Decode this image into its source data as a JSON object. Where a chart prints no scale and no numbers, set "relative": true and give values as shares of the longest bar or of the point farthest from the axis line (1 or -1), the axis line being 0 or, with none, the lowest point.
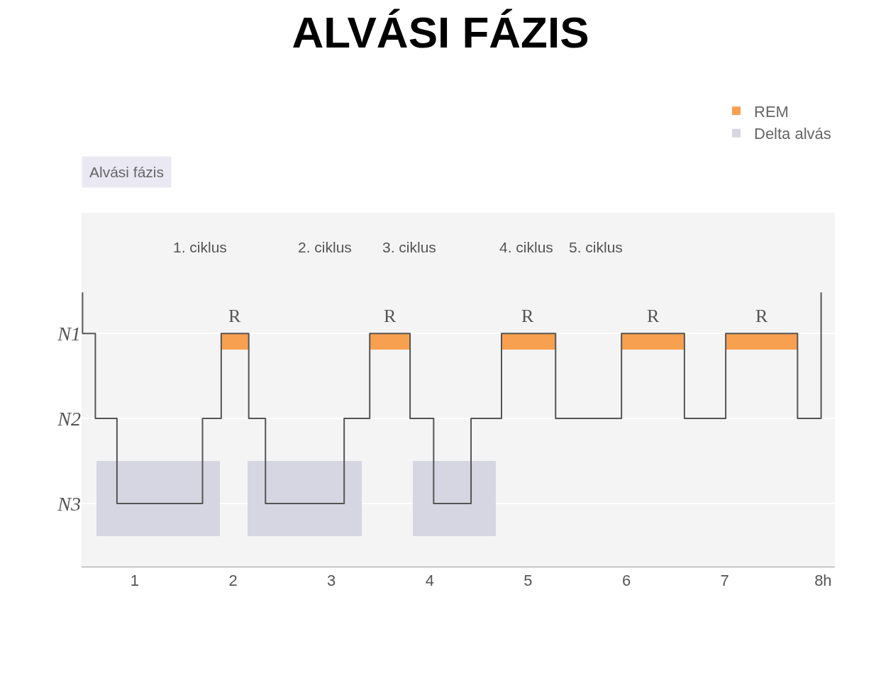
{
  "chart_data": {
    "type": "step",
    "title": "ALVÁSI FÁZIS",
    "relative": true,
    "x": [
      0.47,
      0.47,
      0.6,
      0.82,
      1.69,
      1.88,
      2.16,
      2.33,
      3.13,
      3.39,
      3.8,
      4.04,
      4.42,
      4.73,
      5.28,
      5.95,
      6.59,
      7.01,
      7.74,
      7.98
    ],
    "series": [
      {
        "color": "#555555",
        "values": [
          1,
          0.85,
          0.54,
          0.23,
          0.54,
          0.85,
          0.54,
          0.23,
          0.54,
          0.85,
          0.54,
          0.23,
          0.54,
          0.85,
          0.54,
          0.85,
          0.54,
          0.85,
          0.54,
          1
        ]
      }
    ],
    "y_categories": [
      null,
      "N1",
      "N2",
      "N3"
    ],
    "xlim": [
      0.46,
      8.12
    ],
    "xticks": [
      1,
      2,
      3,
      4,
      5,
      6,
      7,
      {
        "value": 8,
        "label": "8h"
      }
    ],
    "grid": "y",
    "legend": "top right",
    "line_style": "solid",
    "marker": "none",
    "bands": [
      {
        "axis": "x",
        "from": 1.88,
        "to": 2.16,
        "label": "REM",
        "color": "#f7a050"
      },
      {
        "axis": "x",
        "from": 3.39,
        "to": 3.8,
        "color": "#f7a050"
      },
      {
        "axis": "x",
        "from": 4.73,
        "to": 5.28,
        "color": "#f7a050"
      },
      {
        "axis": "x",
        "from": 5.95,
        "to": 6.59,
        "color": "#f7a050"
      },
      {
        "axis": "x",
        "from": 7.01,
        "to": 7.74,
        "color": "#f7a050"
      },
      {
        "axis": "x",
        "from": 0.61,
        "to": 1.87,
        "label": "Delta alvás",
        "color": "#d6d6e2"
      },
      {
        "axis": "x",
        "from": 2.15,
        "to": 3.31,
        "color": "#d6d6e2"
      },
      {
        "axis": "x",
        "from": 3.83,
        "to": 4.67,
        "color": "#d6d6e2"
      }
    ],
    "annotations": [
      "Alvási fázis",
      "1. ciklus",
      "2. ciklus",
      "3. ciklus",
      "4. ciklus",
      "5. ciklus",
      {
        "text": "R",
        "x": 2.02,
        "y": 0.85
      },
      {
        "text": "R",
        "x": 3.6,
        "y": 0.85
      },
      {
        "text": "R",
        "x": 5.0,
        "y": 0.85
      },
      {
        "text": "R",
        "x": 6.27,
        "y": 0.85
      },
      {
        "text": "R",
        "x": 7.38,
        "y": 0.85
      }
    ]
  }
}
